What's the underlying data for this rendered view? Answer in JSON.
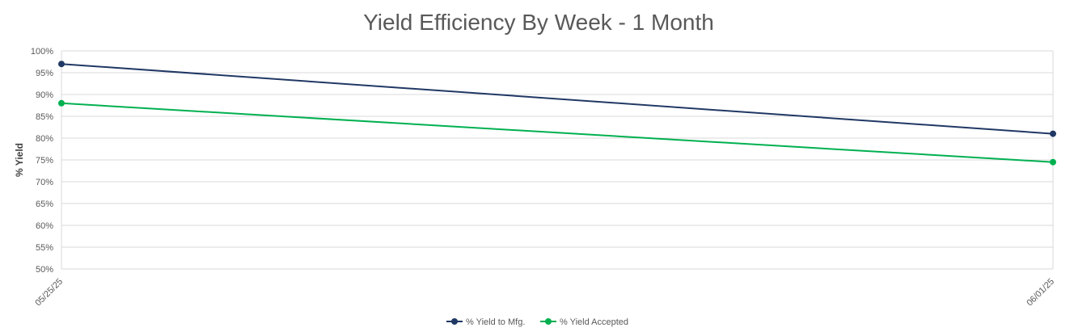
{
  "chart_data": {
    "type": "line",
    "title": "Yield Efficiency By Week - 1 Month",
    "xlabel": "",
    "ylabel": "% Yield",
    "categories": [
      "05/25/25",
      "06/01/25"
    ],
    "ylim": [
      50,
      100
    ],
    "ytick_step": 5,
    "ytick_labels": [
      "50%",
      "55%",
      "60%",
      "65%",
      "70%",
      "75%",
      "80%",
      "85%",
      "90%",
      "95%",
      "100%"
    ],
    "grid": true,
    "legend_position": "bottom",
    "series": [
      {
        "name": "% Yield to Mfg.",
        "values": [
          97,
          81
        ],
        "color": "#203864"
      },
      {
        "name": "% Yield Accepted",
        "values": [
          88,
          74.5
        ],
        "color": "#00B050"
      }
    ]
  }
}
